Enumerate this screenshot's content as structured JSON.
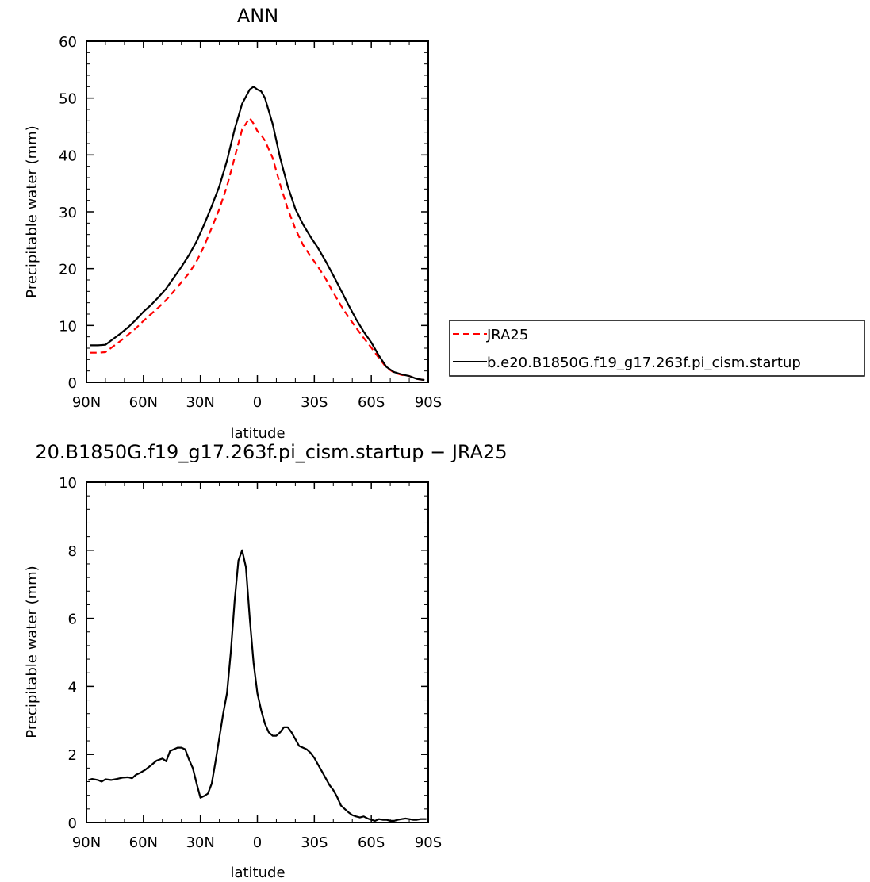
{
  "chart_data": [
    {
      "type": "line",
      "title": "ANN",
      "xlabel": "latitude",
      "ylabel": "Precipitable water (mm)",
      "xlim": [
        90,
        -90
      ],
      "ylim": [
        0,
        60
      ],
      "x_ticks": [
        "90N",
        "60N",
        "30N",
        "0",
        "30S",
        "60S",
        "90S"
      ],
      "y_ticks": [
        "0",
        "10",
        "20",
        "30",
        "40",
        "50",
        "60"
      ],
      "legend_position": "right",
      "series": [
        {
          "name": "JRA25",
          "color": "#ff0000",
          "style": "dashed",
          "x": [
            88,
            84,
            80,
            76,
            72,
            68,
            64,
            60,
            56,
            52,
            48,
            44,
            40,
            36,
            32,
            28,
            24,
            20,
            16,
            12,
            8,
            4,
            2,
            0,
            -2,
            -4,
            -8,
            -12,
            -16,
            -20,
            -24,
            -28,
            -32,
            -36,
            -40,
            -44,
            -48,
            -52,
            -56,
            -60,
            -64,
            -68,
            -72,
            -76,
            -80,
            -84,
            -88
          ],
          "values": [
            5.2,
            5.2,
            5.3,
            6.3,
            7.3,
            8.4,
            9.5,
            10.8,
            12.0,
            13.2,
            14.5,
            16.0,
            17.6,
            19.2,
            21.3,
            24.0,
            27.2,
            30.5,
            34.5,
            39.5,
            44.5,
            46.5,
            45.5,
            44.2,
            43.5,
            42.5,
            39.5,
            34.8,
            30.5,
            27.0,
            24.2,
            22.2,
            20.3,
            18.2,
            15.8,
            13.5,
            11.5,
            9.6,
            7.8,
            6.1,
            4.3,
            2.6,
            1.7,
            1.3,
            1.1,
            0.6,
            0.4
          ]
        },
        {
          "name": "b.e20.B1850G.f19_g17.263f.pi_cism.startup",
          "color": "#000000",
          "style": "solid",
          "x": [
            88,
            84,
            80,
            76,
            72,
            68,
            64,
            60,
            56,
            52,
            48,
            44,
            40,
            36,
            32,
            28,
            24,
            20,
            16,
            12,
            8,
            4,
            2,
            0,
            -2,
            -4,
            -8,
            -12,
            -16,
            -20,
            -24,
            -28,
            -32,
            -36,
            -40,
            -44,
            -48,
            -52,
            -56,
            -60,
            -64,
            -68,
            -72,
            -76,
            -80,
            -84,
            -88
          ],
          "values": [
            6.5,
            6.5,
            6.6,
            7.6,
            8.6,
            9.7,
            11.0,
            12.4,
            13.6,
            15.0,
            16.5,
            18.4,
            20.3,
            22.4,
            24.8,
            27.8,
            31.0,
            34.5,
            39.0,
            44.5,
            49.0,
            51.5,
            52.0,
            51.5,
            51.2,
            50.0,
            45.5,
            39.5,
            34.5,
            30.5,
            27.8,
            25.6,
            23.6,
            21.3,
            18.8,
            16.2,
            13.6,
            11.1,
            8.9,
            7.0,
            4.7,
            2.7,
            1.8,
            1.4,
            1.1,
            0.6,
            0.4
          ]
        }
      ]
    },
    {
      "type": "line",
      "title": "20.B1850G.f19_g17.263f.pi_cism.startup − JRA25",
      "xlabel": "latitude",
      "ylabel": "Precipitable water (mm)",
      "xlim": [
        90,
        -90
      ],
      "ylim": [
        0,
        10
      ],
      "x_ticks": [
        "90N",
        "60N",
        "30N",
        "0",
        "30S",
        "60S",
        "90S"
      ],
      "y_ticks": [
        "0",
        "2",
        "4",
        "6",
        "8",
        "10"
      ],
      "series": [
        {
          "color": "#000000",
          "style": "solid",
          "x": [
            89,
            87,
            84,
            82,
            80,
            77,
            74,
            71,
            68,
            66,
            64,
            62,
            59,
            56,
            53,
            50,
            48,
            46,
            44,
            42,
            40,
            38,
            36,
            34,
            32,
            30,
            28,
            26,
            24,
            22,
            20,
            18,
            16,
            14,
            12,
            10,
            8,
            6,
            4,
            2,
            0,
            -2,
            -4,
            -6,
            -8,
            -10,
            -12,
            -14,
            -16,
            -18,
            -20,
            -22,
            -24,
            -26,
            -28,
            -30,
            -32,
            -34,
            -36,
            -38,
            -40,
            -42,
            -44,
            -46,
            -48,
            -50,
            -52,
            -54,
            -56,
            -58,
            -60,
            -62,
            -64,
            -66,
            -68,
            -70,
            -72,
            -74,
            -76,
            -78,
            -80,
            -82,
            -84,
            -86,
            -88,
            -89
          ],
          "values": [
            1.25,
            1.28,
            1.25,
            1.2,
            1.27,
            1.25,
            1.28,
            1.32,
            1.33,
            1.3,
            1.4,
            1.45,
            1.55,
            1.68,
            1.82,
            1.88,
            1.8,
            2.1,
            2.15,
            2.2,
            2.2,
            2.15,
            1.85,
            1.6,
            1.15,
            0.73,
            0.78,
            0.85,
            1.15,
            1.8,
            2.5,
            3.2,
            3.8,
            5.0,
            6.5,
            7.7,
            8.0,
            7.5,
            6.0,
            4.7,
            3.8,
            3.3,
            2.9,
            2.65,
            2.55,
            2.55,
            2.65,
            2.8,
            2.8,
            2.65,
            2.45,
            2.25,
            2.2,
            2.15,
            2.05,
            1.9,
            1.7,
            1.5,
            1.3,
            1.1,
            0.95,
            0.75,
            0.5,
            0.4,
            0.3,
            0.22,
            0.18,
            0.15,
            0.18,
            0.12,
            0.08,
            0.05,
            0.1,
            0.08,
            0.08,
            0.05,
            0.05,
            0.08,
            0.1,
            0.12,
            0.1,
            0.08,
            0.08,
            0.1,
            0.1,
            0.1
          ]
        }
      ]
    }
  ]
}
